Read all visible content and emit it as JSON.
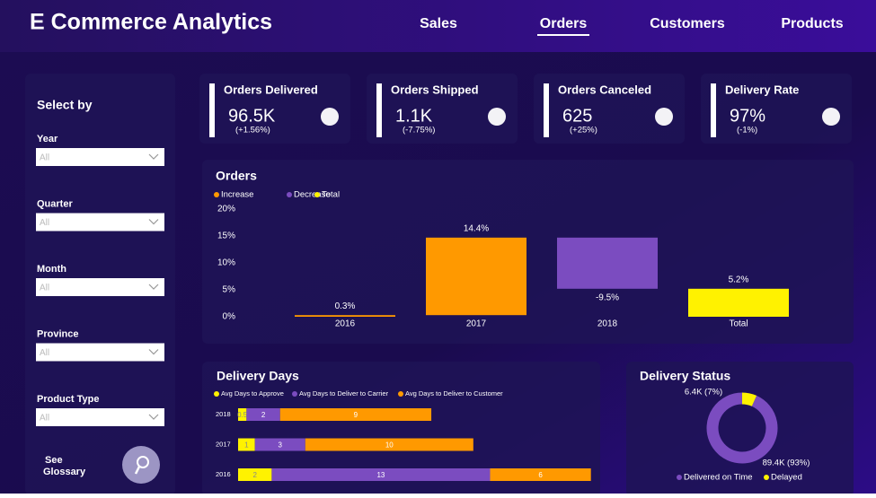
{
  "header": {
    "title": "E Commerce Analytics",
    "nav": [
      "Sales",
      "Orders",
      "Customers",
      "Products"
    ],
    "active": 1
  },
  "filters": {
    "title": "Select by",
    "items": [
      {
        "label": "Year",
        "value": "All"
      },
      {
        "label": "Quarter",
        "value": "All"
      },
      {
        "label": "Month",
        "value": "All"
      },
      {
        "label": "Province",
        "value": "All"
      },
      {
        "label": "Product Type",
        "value": "All"
      }
    ],
    "glossary": [
      "See",
      "Glossary"
    ]
  },
  "kpis": [
    {
      "label": "Orders Delivered",
      "value": "96.5K",
      "change": "(+1.56%)"
    },
    {
      "label": "Orders Shipped",
      "value": "1.1K",
      "change": "(-7.75%)"
    },
    {
      "label": "Orders Canceled",
      "value": "625",
      "change": "(+25%)"
    },
    {
      "label": "Delivery Rate",
      "value": "97%",
      "change": "(-1%)"
    }
  ],
  "orders_chart": {
    "type": "waterfall",
    "title": "Orders",
    "legend": [
      {
        "name": "Increase",
        "color": "#ff9900"
      },
      {
        "name": "Decrease",
        "color": "#7b4cc0"
      },
      {
        "name": "Total",
        "color": "#fff200"
      }
    ],
    "categories": [
      "2016",
      "2017",
      "2018",
      "Total"
    ],
    "values": [
      0.3,
      14.4,
      -9.5,
      5.2
    ],
    "value_labels": [
      "0.3%",
      "14.4%",
      "-9.5%",
      "5.2%"
    ],
    "ylim": [
      0,
      20
    ],
    "yticks": [
      {
        "value": 0,
        "label": "0%"
      },
      {
        "value": 5,
        "label": "5%"
      },
      {
        "value": 10,
        "label": "10%"
      },
      {
        "value": 15,
        "label": "15%"
      },
      {
        "value": 20,
        "label": "20%"
      }
    ]
  },
  "delivery_days": {
    "type": "stacked-bar",
    "title": "Delivery Days",
    "categories": [
      "2018",
      "2017",
      "2016"
    ],
    "series": [
      {
        "name": "Avg Days to Approve",
        "color": "#fff200",
        "values": [
          0.5,
          1,
          2
        ]
      },
      {
        "name": "Avg Days to Deliver to Carrier",
        "color": "#7b4cc0",
        "values": [
          2,
          3,
          13
        ]
      },
      {
        "name": "Avg Days to Deliver to Customer",
        "color": "#ff9900",
        "values": [
          9,
          10,
          6
        ]
      }
    ]
  },
  "delivery_status": {
    "type": "donut",
    "title": "Delivery Status",
    "categories": [
      "Delivered on Time",
      "Delayed"
    ],
    "colors": [
      "#7b4cc0",
      "#fff200"
    ],
    "values": [
      89400,
      6400
    ],
    "value_labels": [
      "89.4K (93%)",
      "6.4K (7%)"
    ]
  }
}
